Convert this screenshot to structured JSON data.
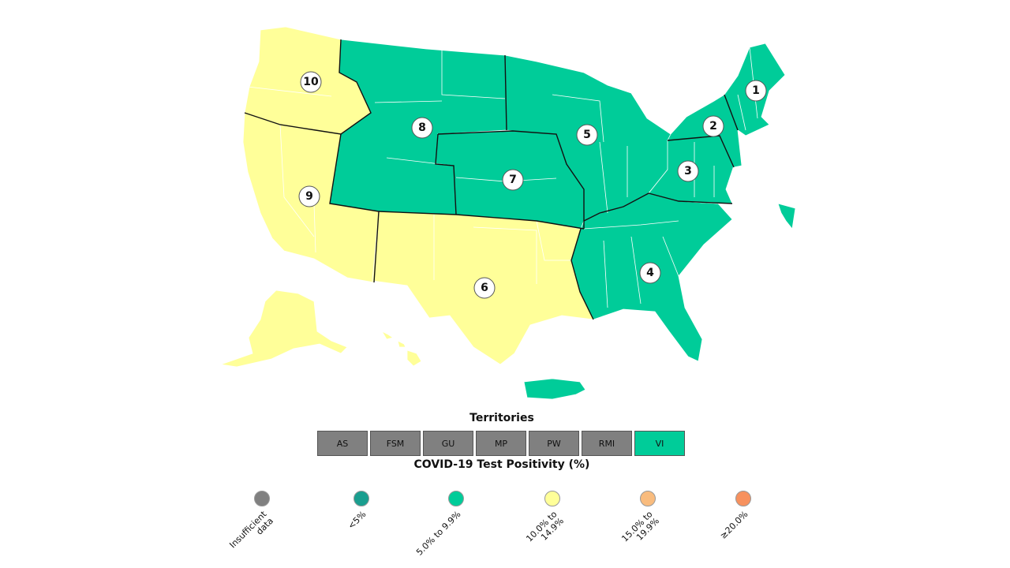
{
  "colors": {
    "insufficient": "#808080",
    "lt5": "#1a9e8f",
    "p5_9": "#00cc99",
    "p10_14": "#ffff99",
    "p15_19": "#f9bc7e",
    "gte20": "#f7915e",
    "border": "#111111"
  },
  "map": {
    "regions": [
      {
        "id": "1",
        "category": "p5_9"
      },
      {
        "id": "2",
        "category": "p5_9"
      },
      {
        "id": "3",
        "category": "p5_9"
      },
      {
        "id": "4",
        "category": "p5_9"
      },
      {
        "id": "5",
        "category": "p5_9"
      },
      {
        "id": "6",
        "category": "p10_14"
      },
      {
        "id": "7",
        "category": "p5_9"
      },
      {
        "id": "8",
        "category": "p5_9"
      },
      {
        "id": "9",
        "category": "p10_14"
      },
      {
        "id": "10",
        "category": "p10_14"
      }
    ]
  },
  "territories": {
    "title": "Territories",
    "items": [
      {
        "label": "AS",
        "category": "insufficient"
      },
      {
        "label": "FSM",
        "category": "insufficient"
      },
      {
        "label": "GU",
        "category": "insufficient"
      },
      {
        "label": "MP",
        "category": "insufficient"
      },
      {
        "label": "PW",
        "category": "insufficient"
      },
      {
        "label": "RMI",
        "category": "insufficient"
      },
      {
        "label": "VI",
        "category": "p5_9"
      }
    ]
  },
  "legend": {
    "title": "COVID-19 Test Positivity (%)",
    "items": [
      {
        "label": "Insufficient\ndata",
        "category": "insufficient"
      },
      {
        "label": "<5%",
        "category": "lt5"
      },
      {
        "label": "5.0% to 9.9%",
        "category": "p5_9"
      },
      {
        "label": "10.0% to\n14.9%",
        "category": "p10_14"
      },
      {
        "label": "15.0% to\n19.9%",
        "category": "p15_19"
      },
      {
        "label": "≥20.0%",
        "category": "gte20"
      }
    ]
  }
}
